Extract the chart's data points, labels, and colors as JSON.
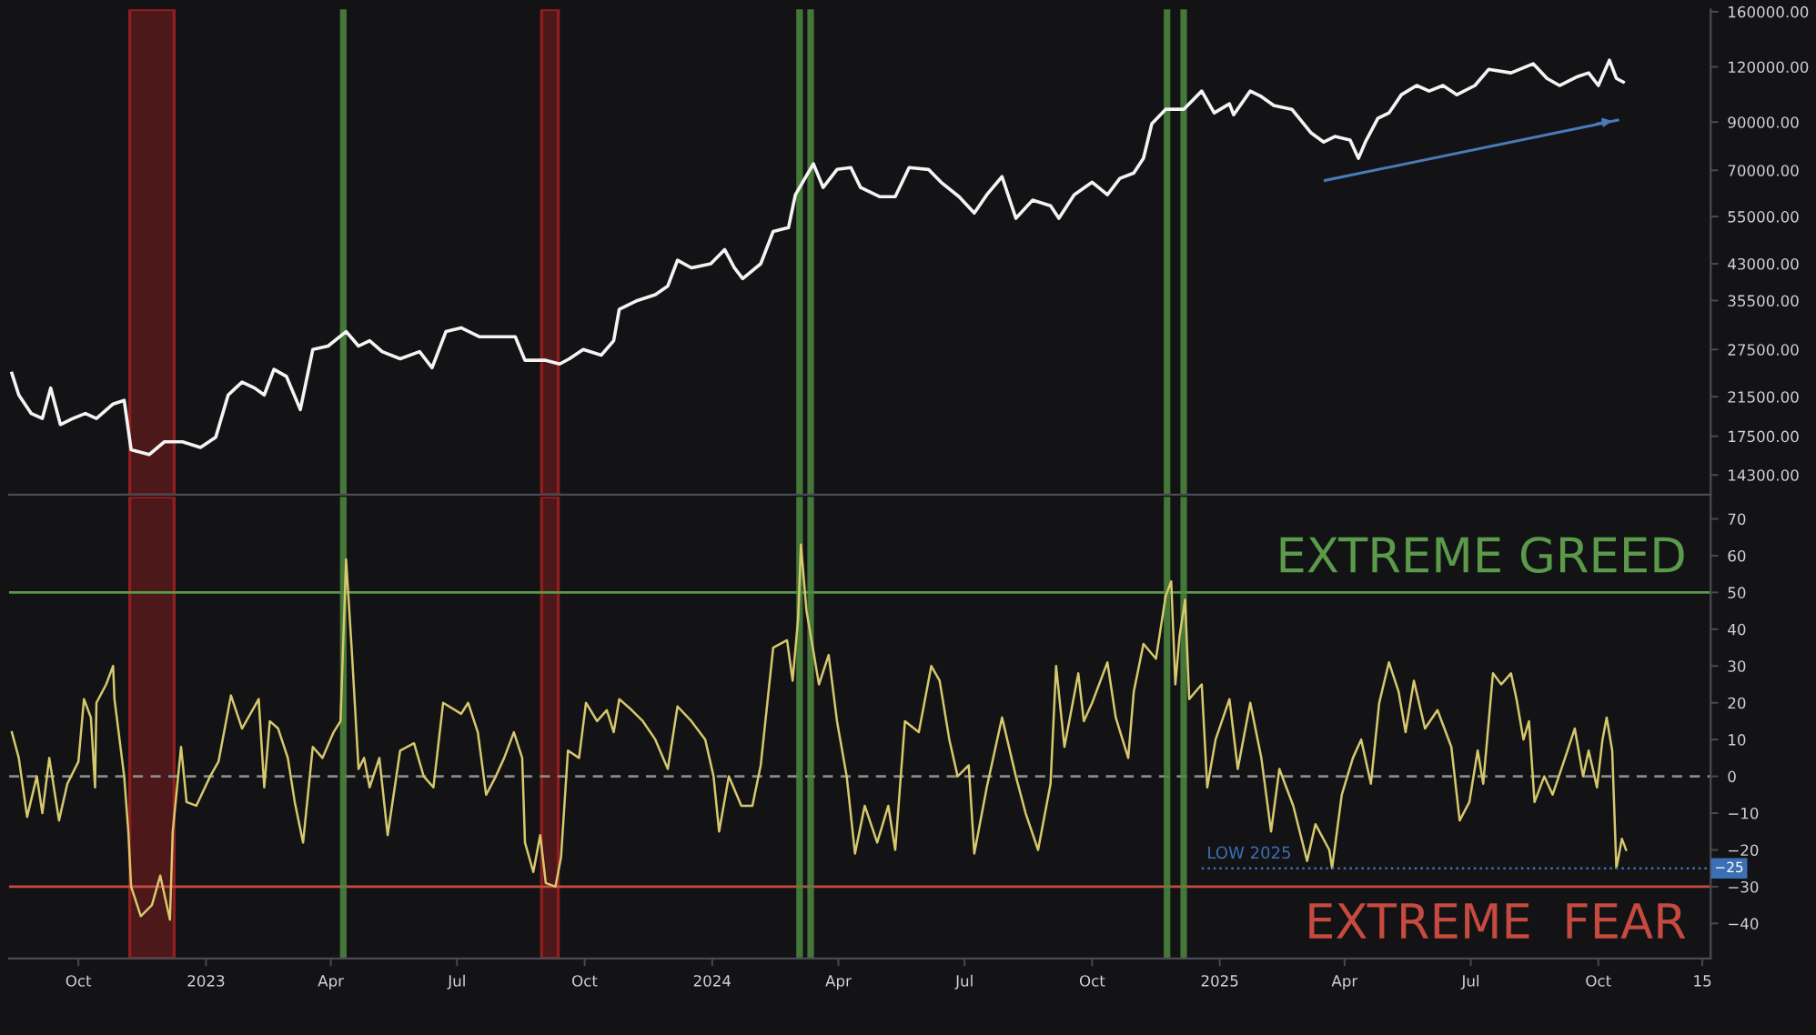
{
  "chart_data": [
    {
      "type": "line",
      "log": true,
      "tick_labels": "y",
      "x": [
        "2022-08-14",
        "2022-08-19",
        "2022-08-28",
        "2022-09-05",
        "2022-09-11",
        "2022-09-18",
        "2022-09-27",
        "2022-10-06",
        "2022-10-14",
        "2022-10-26",
        "2022-11-03",
        "2022-11-08",
        "2022-11-21",
        "2022-12-02",
        "2022-12-15",
        "2022-12-28",
        "2023-01-08",
        "2023-01-17",
        "2023-01-27",
        "2023-02-05",
        "2023-02-12",
        "2023-02-19",
        "2023-02-28",
        "2023-03-10",
        "2023-03-19",
        "2023-03-30",
        "2023-04-12",
        "2023-04-21",
        "2023-04-29",
        "2023-05-08",
        "2023-05-21",
        "2023-06-04",
        "2023-06-13",
        "2023-06-23",
        "2023-07-04",
        "2023-07-17",
        "2023-07-30",
        "2023-08-12",
        "2023-08-19",
        "2023-09-03",
        "2023-09-13",
        "2023-09-20",
        "2023-09-30",
        "2023-10-13",
        "2023-10-22",
        "2023-10-26",
        "2023-11-08",
        "2023-11-21",
        "2023-11-30",
        "2023-12-07",
        "2023-12-17",
        "2023-12-31",
        "2024-01-10",
        "2024-01-17",
        "2024-01-23",
        "2024-02-05",
        "2024-02-14",
        "2024-02-25",
        "2024-03-01",
        "2024-03-14",
        "2024-03-21",
        "2024-03-31",
        "2024-04-10",
        "2024-04-17",
        "2024-05-01",
        "2024-05-12",
        "2024-05-22",
        "2024-06-05",
        "2024-06-14",
        "2024-06-27",
        "2024-07-08",
        "2024-07-17",
        "2024-07-28",
        "2024-08-07",
        "2024-08-19",
        "2024-09-01",
        "2024-09-07",
        "2024-09-18",
        "2024-10-01",
        "2024-10-12",
        "2024-10-21",
        "2024-10-31",
        "2024-11-07",
        "2024-11-13",
        "2024-11-23",
        "2024-12-06",
        "2024-12-19",
        "2024-12-28",
        "2025-01-08",
        "2025-01-11",
        "2025-01-23",
        "2025-01-31",
        "2025-02-09",
        "2025-02-22",
        "2025-03-08",
        "2025-03-17",
        "2025-03-25",
        "2025-04-05",
        "2025-04-11",
        "2025-04-16",
        "2025-04-25",
        "2025-05-03",
        "2025-05-12",
        "2025-05-23",
        "2025-06-01",
        "2025-06-11",
        "2025-06-21",
        "2025-07-04",
        "2025-07-14",
        "2025-07-30",
        "2025-08-15",
        "2025-08-25",
        "2025-09-03",
        "2025-09-16",
        "2025-09-24",
        "2025-10-01",
        "2025-10-09",
        "2025-10-14",
        "2025-10-19"
      ],
      "series": [
        {
          "color": "#f4f4f4",
          "values": [
            24300,
            21700,
            19700,
            19200,
            22500,
            18600,
            19200,
            19700,
            19200,
            20700,
            21100,
            16300,
            15900,
            17000,
            17000,
            16500,
            17400,
            21700,
            23200,
            22500,
            21700,
            24800,
            23900,
            20100,
            27500,
            28000,
            30200,
            28000,
            28800,
            27200,
            26200,
            27200,
            25000,
            30200,
            30800,
            29400,
            29400,
            29400,
            26000,
            26000,
            25500,
            26200,
            27500,
            26700,
            28800,
            33900,
            35500,
            36600,
            38300,
            43800,
            42100,
            43000,
            46300,
            42100,
            39800,
            43000,
            50900,
            51900,
            61600,
            72400,
            64000,
            70300,
            71000,
            64000,
            61000,
            61000,
            71000,
            70300,
            65800,
            61000,
            56000,
            61600,
            67700,
            54500,
            59900,
            58200,
            54500,
            61600,
            65800,
            61600,
            67100,
            69000,
            74500,
            89200,
            96200,
            96200,
            105800,
            94400,
            99000,
            93500,
            105800,
            102800,
            98100,
            96200,
            85000,
            81100,
            83500,
            81900,
            74500,
            81100,
            91800,
            94400,
            103800,
            108900,
            105800,
            108900,
            103800,
            108900,
            118500,
            116300,
            122000,
            113000,
            108900,
            114100,
            116300,
            108900,
            124300,
            113000,
            110900
          ]
        },
        {
          "color": "#4a7ab8",
          "x": [
            "2025-03-18",
            "2025-10-15"
          ],
          "values": [
            66400,
            90900
          ]
        }
      ],
      "xlim": [
        "2022-08-12",
        "2025-12-21"
      ],
      "ylim": [
        12900,
        162000
      ],
      "yticks": [
        {
          "value": 14300,
          "label": "14300.00"
        },
        {
          "value": 17500,
          "label": "17500.00"
        },
        {
          "value": 21500,
          "label": "21500.00"
        },
        {
          "value": 27500,
          "label": "27500.00"
        },
        {
          "value": 35500,
          "label": "35500.00"
        },
        {
          "value": 43000,
          "label": "43000.00"
        },
        {
          "value": 55000,
          "label": "55000.00"
        },
        {
          "value": 70000,
          "label": "70000.00"
        },
        {
          "value": 90000,
          "label": "90000.00"
        },
        {
          "value": 120000,
          "label": "120000.00"
        },
        {
          "value": 160000,
          "label": "160000.00"
        }
      ],
      "bands": [
        {
          "axis": "x",
          "from": "2022-11-07",
          "to": "2022-12-09",
          "color": "#9c1f1f"
        },
        {
          "axis": "x",
          "from": "2023-08-31",
          "to": "2023-09-12",
          "color": "#9c1f1f"
        }
      ],
      "ref_lines": [
        {
          "axis": "x",
          "value": "2023-04-10",
          "color": "#4e8a3e"
        },
        {
          "axis": "x",
          "value": "2024-03-04",
          "color": "#4e8a3e"
        },
        {
          "axis": "x",
          "value": "2024-03-12",
          "color": "#4e8a3e"
        },
        {
          "axis": "x",
          "value": "2024-11-24",
          "color": "#4e8a3e"
        },
        {
          "axis": "x",
          "value": "2024-12-06",
          "color": "#4e8a3e"
        }
      ]
    },
    {
      "type": "line",
      "x": [
        "2022-08-14",
        "2022-08-19",
        "2022-08-25",
        "2022-09-01",
        "2022-09-05",
        "2022-09-10",
        "2022-09-17",
        "2022-09-23",
        "2022-10-01",
        "2022-10-05",
        "2022-10-10",
        "2022-10-13",
        "2022-10-14",
        "2022-10-21",
        "2022-10-26",
        "2022-10-27",
        "2022-11-03",
        "2022-11-06",
        "2022-11-08",
        "2022-11-15",
        "2022-11-23",
        "2022-11-29",
        "2022-12-06",
        "2022-12-08",
        "2022-12-14",
        "2022-12-18",
        "2022-12-25",
        "2023-01-04",
        "2023-01-10",
        "2023-01-19",
        "2023-01-27",
        "2023-02-08",
        "2023-02-12",
        "2023-02-16",
        "2023-02-22",
        "2023-03-01",
        "2023-03-06",
        "2023-03-12",
        "2023-03-19",
        "2023-03-26",
        "2023-04-03",
        "2023-04-08",
        "2023-04-12",
        "2023-04-16",
        "2023-04-21",
        "2023-04-25",
        "2023-04-29",
        "2023-05-06",
        "2023-05-12",
        "2023-05-21",
        "2023-05-31",
        "2023-06-07",
        "2023-06-14",
        "2023-06-21",
        "2023-07-04",
        "2023-07-09",
        "2023-07-16",
        "2023-07-22",
        "2023-07-29",
        "2023-08-04",
        "2023-08-11",
        "2023-08-17",
        "2023-08-19",
        "2023-08-25",
        "2023-08-30",
        "2023-09-03",
        "2023-09-10",
        "2023-09-14",
        "2023-09-19",
        "2023-09-27",
        "2023-10-02",
        "2023-10-10",
        "2023-10-17",
        "2023-10-22",
        "2023-10-26",
        "2023-11-04",
        "2023-11-12",
        "2023-11-21",
        "2023-11-30",
        "2023-12-07",
        "2023-12-17",
        "2023-12-27",
        "2024-01-02",
        "2024-01-06",
        "2024-01-13",
        "2024-01-22",
        "2024-01-30",
        "2024-02-05",
        "2024-02-14",
        "2024-02-24",
        "2024-02-28",
        "2024-03-03",
        "2024-03-05",
        "2024-03-09",
        "2024-03-14",
        "2024-03-18",
        "2024-03-25",
        "2024-03-31",
        "2024-04-07",
        "2024-04-13",
        "2024-04-20",
        "2024-04-29",
        "2024-05-07",
        "2024-05-12",
        "2024-05-19",
        "2024-05-29",
        "2024-06-07",
        "2024-06-13",
        "2024-06-20",
        "2024-06-26",
        "2024-07-04",
        "2024-07-08",
        "2024-07-17",
        "2024-07-28",
        "2024-08-07",
        "2024-08-14",
        "2024-08-23",
        "2024-09-01",
        "2024-09-05",
        "2024-09-11",
        "2024-09-21",
        "2024-09-25",
        "2024-10-01",
        "2024-10-12",
        "2024-10-18",
        "2024-10-27",
        "2024-10-31",
        "2024-11-07",
        "2024-11-16",
        "2024-11-23",
        "2024-11-27",
        "2024-11-30",
        "2024-12-03",
        "2024-12-07",
        "2024-12-10",
        "2024-12-19",
        "2024-12-23",
        "2024-12-29",
        "2025-01-08",
        "2025-01-14",
        "2025-01-23",
        "2025-01-31",
        "2025-02-07",
        "2025-02-13",
        "2025-02-23",
        "2025-03-05",
        "2025-03-11",
        "2025-03-21",
        "2025-03-23",
        "2025-03-30",
        "2025-04-07",
        "2025-04-13",
        "2025-04-20",
        "2025-04-26",
        "2025-05-03",
        "2025-05-10",
        "2025-05-15",
        "2025-05-21",
        "2025-05-29",
        "2025-06-07",
        "2025-06-17",
        "2025-06-23",
        "2025-06-30",
        "2025-07-06",
        "2025-07-10",
        "2025-07-17",
        "2025-07-23",
        "2025-07-30",
        "2025-08-03",
        "2025-08-08",
        "2025-08-12",
        "2025-08-16",
        "2025-08-23",
        "2025-08-29",
        "2025-09-07",
        "2025-09-14",
        "2025-09-20",
        "2025-09-24",
        "2025-09-30",
        "2025-10-04",
        "2025-10-07",
        "2025-10-11",
        "2025-10-14",
        "2025-10-18",
        "2025-10-21"
      ],
      "series": [
        {
          "color": "#d6c86c",
          "values": [
            12,
            5,
            -11,
            0,
            -10,
            5,
            -12,
            -2,
            4,
            21,
            16,
            -3,
            20,
            25,
            30,
            21,
            0,
            -15,
            -30,
            -38,
            -35,
            -27,
            -39,
            -15,
            8,
            -7,
            -8,
            0,
            4,
            22,
            13,
            21,
            -3,
            15,
            13,
            5,
            -7,
            -18,
            8,
            5,
            12,
            15,
            59,
            35,
            2,
            5,
            -3,
            5,
            -16,
            7,
            9,
            0,
            -3,
            20,
            17,
            20,
            12,
            -5,
            0,
            5,
            12,
            5,
            -18,
            -26,
            -16,
            -29,
            -30,
            -22,
            7,
            5,
            20,
            15,
            18,
            12,
            21,
            18,
            15,
            10,
            2,
            19,
            15,
            10,
            0,
            -15,
            0,
            -8,
            -8,
            3,
            35,
            37,
            26,
            43,
            63,
            45,
            34,
            25,
            33,
            15,
            0,
            -21,
            -8,
            -18,
            -8,
            -20,
            15,
            12,
            30,
            26,
            10,
            0,
            3,
            -21,
            -3,
            16,
            0,
            -10,
            -20,
            -2,
            30,
            8,
            28,
            15,
            20,
            31,
            16,
            5,
            23,
            36,
            32,
            49,
            53,
            25,
            38,
            48,
            21,
            25,
            -3,
            10,
            21,
            2,
            20,
            5,
            -15,
            2,
            -8,
            -23,
            -13,
            -20,
            -25,
            -5,
            5,
            10,
            -2,
            20,
            31,
            23,
            12,
            26,
            13,
            18,
            8,
            -12,
            -7,
            7,
            -2,
            28,
            25,
            28,
            21,
            10,
            15,
            -7,
            0,
            -5,
            5,
            13,
            0,
            7,
            -3,
            10,
            16,
            7,
            -25,
            -17,
            -20
          ]
        },
        {
          "name": "LOW 2025",
          "color": "#3c6fb4",
          "line_style": "dotted",
          "x": [
            "2024-12-19",
            "2025-12-21"
          ],
          "values": [
            -25,
            -25
          ],
          "value_labels": [
            null,
            "−25"
          ]
        }
      ],
      "xlim": [
        "2022-08-12",
        "2025-12-21"
      ],
      "ylim": [
        -49.5,
        76
      ],
      "xticks": [
        {
          "value": "2022-10-01",
          "label": "Oct"
        },
        {
          "value": "2023-01-01",
          "label": "2023"
        },
        {
          "value": "2023-04-01",
          "label": "Apr"
        },
        {
          "value": "2023-07-01",
          "label": "Jul"
        },
        {
          "value": "2023-10-01",
          "label": "Oct"
        },
        {
          "value": "2024-01-01",
          "label": "2024"
        },
        {
          "value": "2024-04-01",
          "label": "Apr"
        },
        {
          "value": "2024-07-01",
          "label": "Jul"
        },
        {
          "value": "2024-10-01",
          "label": "Oct"
        },
        {
          "value": "2025-01-01",
          "label": "2025"
        },
        {
          "value": "2025-04-01",
          "label": "Apr"
        },
        {
          "value": "2025-07-01",
          "label": "Jul"
        },
        {
          "value": "2025-10-01",
          "label": "Oct"
        },
        {
          "value": "2025-12-15",
          "label": "15"
        }
      ],
      "yticks": [
        {
          "value": -40,
          "label": "−40"
        },
        {
          "value": -30,
          "label": "−30"
        },
        {
          "value": -20,
          "label": "−20"
        },
        {
          "value": -10,
          "label": "−10"
        },
        0,
        10,
        20,
        30,
        40,
        50,
        60,
        70
      ],
      "bands": [
        {
          "axis": "x",
          "from": "2022-11-07",
          "to": "2022-12-09",
          "color": "#9c1f1f"
        },
        {
          "axis": "x",
          "from": "2023-08-31",
          "to": "2023-09-12",
          "color": "#9c1f1f"
        }
      ],
      "ref_lines": [
        {
          "axis": "y",
          "value": 50,
          "label": "EXTREME GREED",
          "color": "#5a9a4a"
        },
        {
          "axis": "y",
          "value": -30,
          "label": "EXTREME  FEAR",
          "color": "#c64a40"
        },
        {
          "axis": "y",
          "value": 0,
          "color": "#8a8a8a",
          "line_style": "dashed"
        },
        {
          "axis": "x",
          "value": "2023-04-10",
          "color": "#4e8a3e"
        },
        {
          "axis": "x",
          "value": "2024-03-04",
          "color": "#4e8a3e"
        },
        {
          "axis": "x",
          "value": "2024-03-12",
          "color": "#4e8a3e"
        },
        {
          "axis": "x",
          "value": "2024-11-24",
          "color": "#4e8a3e"
        },
        {
          "axis": "x",
          "value": "2024-12-06",
          "color": "#4e8a3e"
        }
      ]
    }
  ]
}
